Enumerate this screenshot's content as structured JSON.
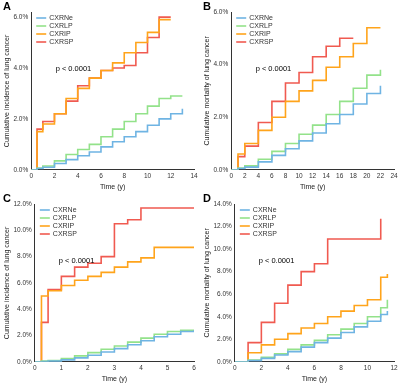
{
  "chart_data": [
    {
      "type": "line",
      "title": "A",
      "annotation": "p < 0.0001",
      "x_label": "Time (y)",
      "y_label": "Cumulative incidence of lung cancer",
      "legend": "top-left",
      "grid": false,
      "line_style": "step",
      "x": [
        0,
        0.5,
        1,
        2,
        3,
        4,
        5,
        6,
        7,
        8,
        9,
        10,
        11,
        12,
        13
      ],
      "series": [
        {
          "name": "CXRNe",
          "color": "#6fb4e3",
          "values": [
            0,
            0.05,
            0.1,
            0.25,
            0.4,
            0.55,
            0.7,
            0.9,
            1.1,
            1.3,
            1.5,
            1.75,
            2.0,
            2.2,
            2.4
          ]
        },
        {
          "name": "CXRLP",
          "color": "#93e28a",
          "values": [
            0,
            0.07,
            0.15,
            0.35,
            0.6,
            0.8,
            1.0,
            1.3,
            1.6,
            1.9,
            2.2,
            2.5,
            2.8,
            2.9,
            2.9
          ]
        },
        {
          "name": "CXRIP",
          "color": "#ffa41b",
          "values": [
            0,
            1.5,
            1.8,
            2.2,
            2.8,
            3.2,
            3.6,
            3.9,
            4.2,
            4.6,
            5.0,
            5.4,
            5.9,
            5.9,
            null
          ]
        },
        {
          "name": "CXRSP",
          "color": "#f05a50",
          "values": [
            0,
            1.6,
            1.9,
            2.2,
            2.7,
            3.3,
            3.6,
            3.9,
            4.0,
            4.1,
            4.6,
            5.2,
            6.0,
            6.0,
            null
          ]
        }
      ],
      "xlim": [
        0,
        14
      ],
      "xticks": [
        0,
        2,
        4,
        6,
        8,
        10,
        12,
        14
      ],
      "ylim": [
        0,
        6.2
      ],
      "yticks": [
        {
          "value": 0,
          "label": "0.0%"
        },
        {
          "value": 2,
          "label": "2.0%"
        },
        {
          "value": 4,
          "label": "4.0%"
        },
        {
          "value": 6,
          "label": "6.0%"
        }
      ]
    },
    {
      "type": "line",
      "title": "B",
      "annotation": "p < 0.0001",
      "x_label": "Time (y)",
      "y_label": "Cumulative mortality of lung cancer",
      "legend": "top-left",
      "grid": false,
      "line_style": "step",
      "x": [
        0,
        1,
        2,
        4,
        6,
        8,
        10,
        12,
        14,
        16,
        18,
        20,
        22
      ],
      "series": [
        {
          "name": "CXRNe",
          "color": "#6fb4e3",
          "values": [
            0,
            0.05,
            0.1,
            0.3,
            0.55,
            0.8,
            1.1,
            1.4,
            1.75,
            2.1,
            2.5,
            2.9,
            3.2
          ]
        },
        {
          "name": "CXRLP",
          "color": "#93e28a",
          "values": [
            0,
            0.07,
            0.15,
            0.4,
            0.7,
            1.0,
            1.35,
            1.7,
            2.1,
            2.6,
            3.1,
            3.6,
            3.8
          ]
        },
        {
          "name": "CXRIP",
          "color": "#ffa41b",
          "values": [
            0,
            0.6,
            1.0,
            1.5,
            2.0,
            2.6,
            3.0,
            3.4,
            3.9,
            4.3,
            4.8,
            5.4,
            5.4
          ]
        },
        {
          "name": "CXRSP",
          "color": "#f05a50",
          "values": [
            0,
            0.5,
            0.9,
            1.8,
            2.6,
            3.3,
            3.7,
            4.3,
            4.7,
            5.0,
            5.0,
            null,
            null
          ]
        }
      ],
      "xlim": [
        0,
        24
      ],
      "xticks": [
        0,
        2,
        4,
        6,
        8,
        10,
        12,
        14,
        16,
        18,
        20,
        22,
        24
      ],
      "ylim": [
        0,
        6
      ],
      "yticks": [
        {
          "value": 0,
          "label": "0.0%"
        },
        {
          "value": 2,
          "label": "2.0%"
        },
        {
          "value": 4,
          "label": "4.0%"
        },
        {
          "value": 6,
          "label": "6.0%"
        }
      ]
    },
    {
      "type": "line",
      "title": "C",
      "annotation": "p < 0.0001",
      "x_label": "Time (y)",
      "y_label": "Cumulative incidence of lung cancer",
      "legend": "top-left",
      "grid": false,
      "line_style": "step",
      "x": [
        0,
        0.25,
        0.5,
        1,
        1.5,
        2,
        2.5,
        3,
        3.5,
        4,
        4.5,
        5,
        5.5,
        6
      ],
      "series": [
        {
          "name": "CXRNe",
          "color": "#6fb4e3",
          "values": [
            0,
            0.02,
            0.05,
            0.15,
            0.3,
            0.5,
            0.75,
            1.0,
            1.3,
            1.6,
            1.9,
            2.1,
            2.3,
            2.4
          ]
        },
        {
          "name": "CXRLP",
          "color": "#93e28a",
          "values": [
            0,
            0.05,
            0.1,
            0.25,
            0.45,
            0.7,
            0.95,
            1.2,
            1.5,
            1.8,
            2.1,
            2.3,
            2.4,
            2.4
          ]
        },
        {
          "name": "CXRIP",
          "color": "#ffa41b",
          "values": [
            0,
            5.0,
            5.4,
            5.8,
            6.2,
            6.5,
            6.8,
            7.2,
            7.6,
            7.9,
            8.7,
            8.7,
            8.7,
            8.7
          ]
        },
        {
          "name": "CXRSP",
          "color": "#f05a50",
          "values": [
            0,
            3.0,
            5.5,
            6.5,
            7.2,
            7.5,
            8.0,
            10.5,
            10.8,
            11.7,
            11.7,
            11.7,
            11.7,
            11.7
          ]
        }
      ],
      "xlim": [
        0,
        6
      ],
      "xticks": [
        0,
        1,
        2,
        3,
        4,
        5,
        6
      ],
      "ylim": [
        0,
        12
      ],
      "yticks": [
        {
          "value": 0,
          "label": "0.0%"
        },
        {
          "value": 2,
          "label": "2.0%"
        },
        {
          "value": 4,
          "label": "4.0%"
        },
        {
          "value": 6,
          "label": "6.0%"
        },
        {
          "value": 8,
          "label": "8.0%"
        },
        {
          "value": 10,
          "label": "10.0%"
        },
        {
          "value": 12,
          "label": "12.0%"
        }
      ]
    },
    {
      "type": "line",
      "title": "D",
      "annotation": "p < 0.0001",
      "x_label": "Time (y)",
      "y_label": "Cumulative mortality of lung cancer",
      "legend": "top-left",
      "grid": false,
      "line_style": "step",
      "x": [
        0,
        1,
        2,
        3,
        4,
        5,
        6,
        7,
        8,
        9,
        10,
        11,
        11.5
      ],
      "series": [
        {
          "name": "CXRNe",
          "color": "#6fb4e3",
          "values": [
            0,
            0.1,
            0.3,
            0.6,
            0.9,
            1.3,
            1.7,
            2.1,
            2.6,
            3.1,
            3.6,
            4.2,
            4.5
          ]
        },
        {
          "name": "CXRLP",
          "color": "#93e28a",
          "values": [
            0,
            0.15,
            0.4,
            0.7,
            1.1,
            1.5,
            1.9,
            2.4,
            2.9,
            3.4,
            4.0,
            4.8,
            5.5
          ]
        },
        {
          "name": "CXRIP",
          "color": "#ffa41b",
          "values": [
            0,
            0.8,
            1.5,
            2.0,
            2.5,
            3.0,
            3.4,
            4.0,
            4.5,
            5.0,
            5.5,
            7.5,
            7.8
          ]
        },
        {
          "name": "CXRSP",
          "color": "#f05a50",
          "values": [
            0,
            1.7,
            3.5,
            5.2,
            6.8,
            8.0,
            8.7,
            10.9,
            10.9,
            10.9,
            10.9,
            12.7,
            null
          ]
        }
      ],
      "xlim": [
        0,
        12
      ],
      "xticks": [
        0,
        2,
        4,
        6,
        8,
        10,
        12
      ],
      "ylim": [
        0,
        14
      ],
      "yticks": [
        {
          "value": 0,
          "label": "0.0%"
        },
        {
          "value": 2,
          "label": "2.0%"
        },
        {
          "value": 4,
          "label": "4.0%"
        },
        {
          "value": 6,
          "label": "6.0%"
        },
        {
          "value": 8,
          "label": "8.0%"
        },
        {
          "value": 10,
          "label": "10.0%"
        },
        {
          "value": 12,
          "label": "12.0%"
        },
        {
          "value": 14,
          "label": "14.0%"
        }
      ]
    }
  ]
}
